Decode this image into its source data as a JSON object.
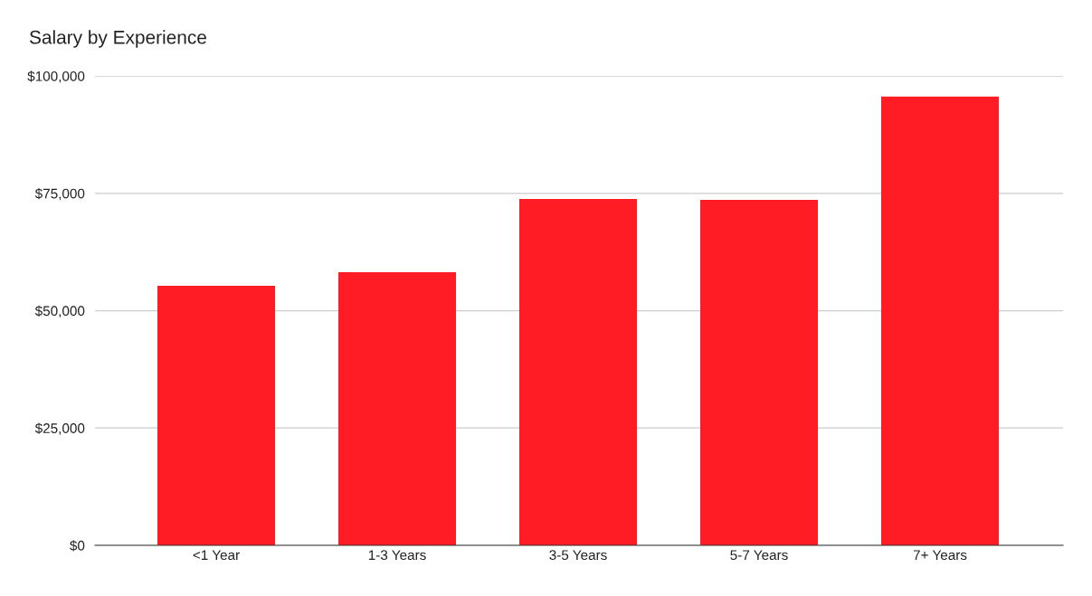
{
  "chart_data": {
    "type": "bar",
    "title": "Salary by Experience",
    "categories": [
      "<1 Year",
      "1-3 Years",
      "3-5 Years",
      "5-7 Years",
      "7+ Years"
    ],
    "values": [
      55300,
      58200,
      73800,
      73600,
      95600
    ],
    "color": "#ff1c24",
    "ylim": [
      0,
      100000
    ],
    "yticks": [
      {
        "value": 0,
        "label": "$0"
      },
      {
        "value": 25000,
        "label": "$25,000"
      },
      {
        "value": 50000,
        "label": "$50,000"
      },
      {
        "value": 75000,
        "label": "$75,000"
      },
      {
        "value": 100000,
        "label": "$100,000"
      }
    ],
    "grid": "y",
    "legend": false
  }
}
